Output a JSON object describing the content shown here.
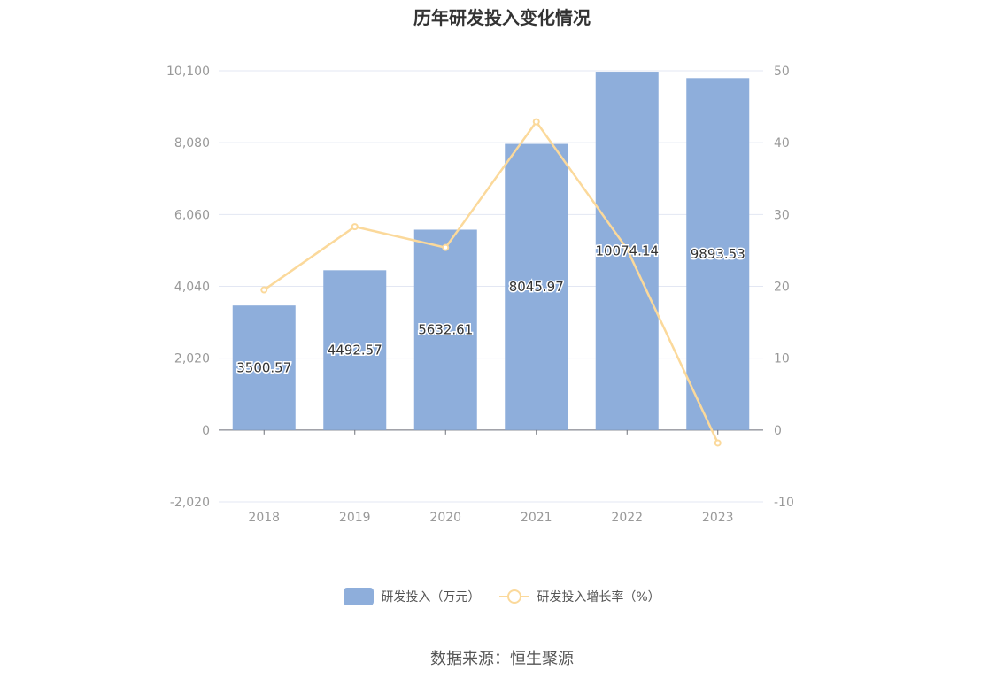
{
  "chart_data": {
    "type": "bar",
    "title": "历年研发投入变化情况",
    "categories": [
      "2018",
      "2019",
      "2020",
      "2021",
      "2022",
      "2023"
    ],
    "series": [
      {
        "name": "研发投入（万元）",
        "type": "bar",
        "axis": "left",
        "values": [
          3500.57,
          4492.57,
          5632.61,
          8045.97,
          10074.14,
          9893.53
        ],
        "labels": [
          "3500.57",
          "4492.57",
          "5632.61",
          "8045.97",
          "10074.14",
          "9893.53"
        ],
        "color": "#8eaedb"
      },
      {
        "name": "研发投入增长率（%）",
        "type": "line",
        "axis": "right",
        "values": [
          19.5,
          28.3,
          25.4,
          42.9,
          25.2,
          -1.8
        ],
        "color": "#fbd99b"
      }
    ],
    "y_left": {
      "min": -2020,
      "max": 10100,
      "ticks": [
        "-2,020",
        "0",
        "2,020",
        "4,040",
        "6,060",
        "8,080",
        "10,100"
      ],
      "tick_values": [
        -2020,
        0,
        2020,
        4040,
        6060,
        8080,
        10100
      ]
    },
    "y_right": {
      "min": -10,
      "max": 50,
      "ticks": [
        "-10",
        "0",
        "10",
        "20",
        "30",
        "40",
        "50"
      ],
      "tick_values": [
        -10,
        0,
        10,
        20,
        30,
        40,
        50
      ]
    },
    "grid": true,
    "legend_position": "bottom",
    "source": "数据来源：恒生聚源"
  }
}
